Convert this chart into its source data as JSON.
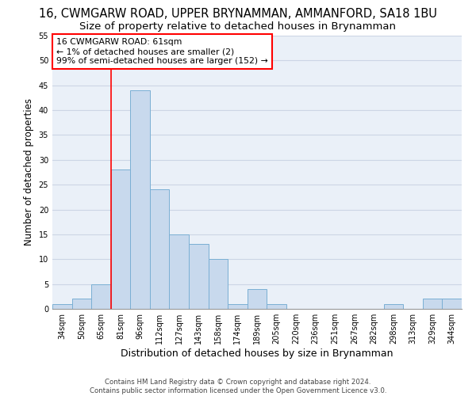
{
  "title1": "16, CWMGARW ROAD, UPPER BRYNAMMAN, AMMANFORD, SA18 1BU",
  "title2": "Size of property relative to detached houses in Brynamman",
  "xlabel": "Distribution of detached houses by size in Brynamman",
  "ylabel": "Number of detached properties",
  "footnote1": "Contains HM Land Registry data © Crown copyright and database right 2024.",
  "footnote2": "Contains public sector information licensed under the Open Government Licence v3.0.",
  "categories": [
    "34sqm",
    "50sqm",
    "65sqm",
    "81sqm",
    "96sqm",
    "112sqm",
    "127sqm",
    "143sqm",
    "158sqm",
    "174sqm",
    "189sqm",
    "205sqm",
    "220sqm",
    "236sqm",
    "251sqm",
    "267sqm",
    "282sqm",
    "298sqm",
    "313sqm",
    "329sqm",
    "344sqm"
  ],
  "values": [
    1,
    2,
    5,
    28,
    44,
    24,
    15,
    13,
    10,
    1,
    4,
    1,
    0,
    0,
    0,
    0,
    0,
    1,
    0,
    2,
    2
  ],
  "bar_color": "#c8d9ed",
  "bar_edge_color": "#7aafd4",
  "bar_edge_width": 0.7,
  "ylim": [
    0,
    55
  ],
  "yticks": [
    0,
    5,
    10,
    15,
    20,
    25,
    30,
    35,
    40,
    45,
    50,
    55
  ],
  "grid_color": "#ccd5e5",
  "bg_color": "#eaf0f8",
  "annotation_text1": "16 CWMGARW ROAD: 61sqm",
  "annotation_text2": "← 1% of detached houses are smaller (2)",
  "annotation_text3": "99% of semi-detached houses are larger (152) →",
  "redline_bar_index": 2,
  "title_fontsize": 10.5,
  "subtitle_fontsize": 9.5,
  "tick_fontsize": 7,
  "ylabel_fontsize": 8.5,
  "xlabel_fontsize": 9
}
